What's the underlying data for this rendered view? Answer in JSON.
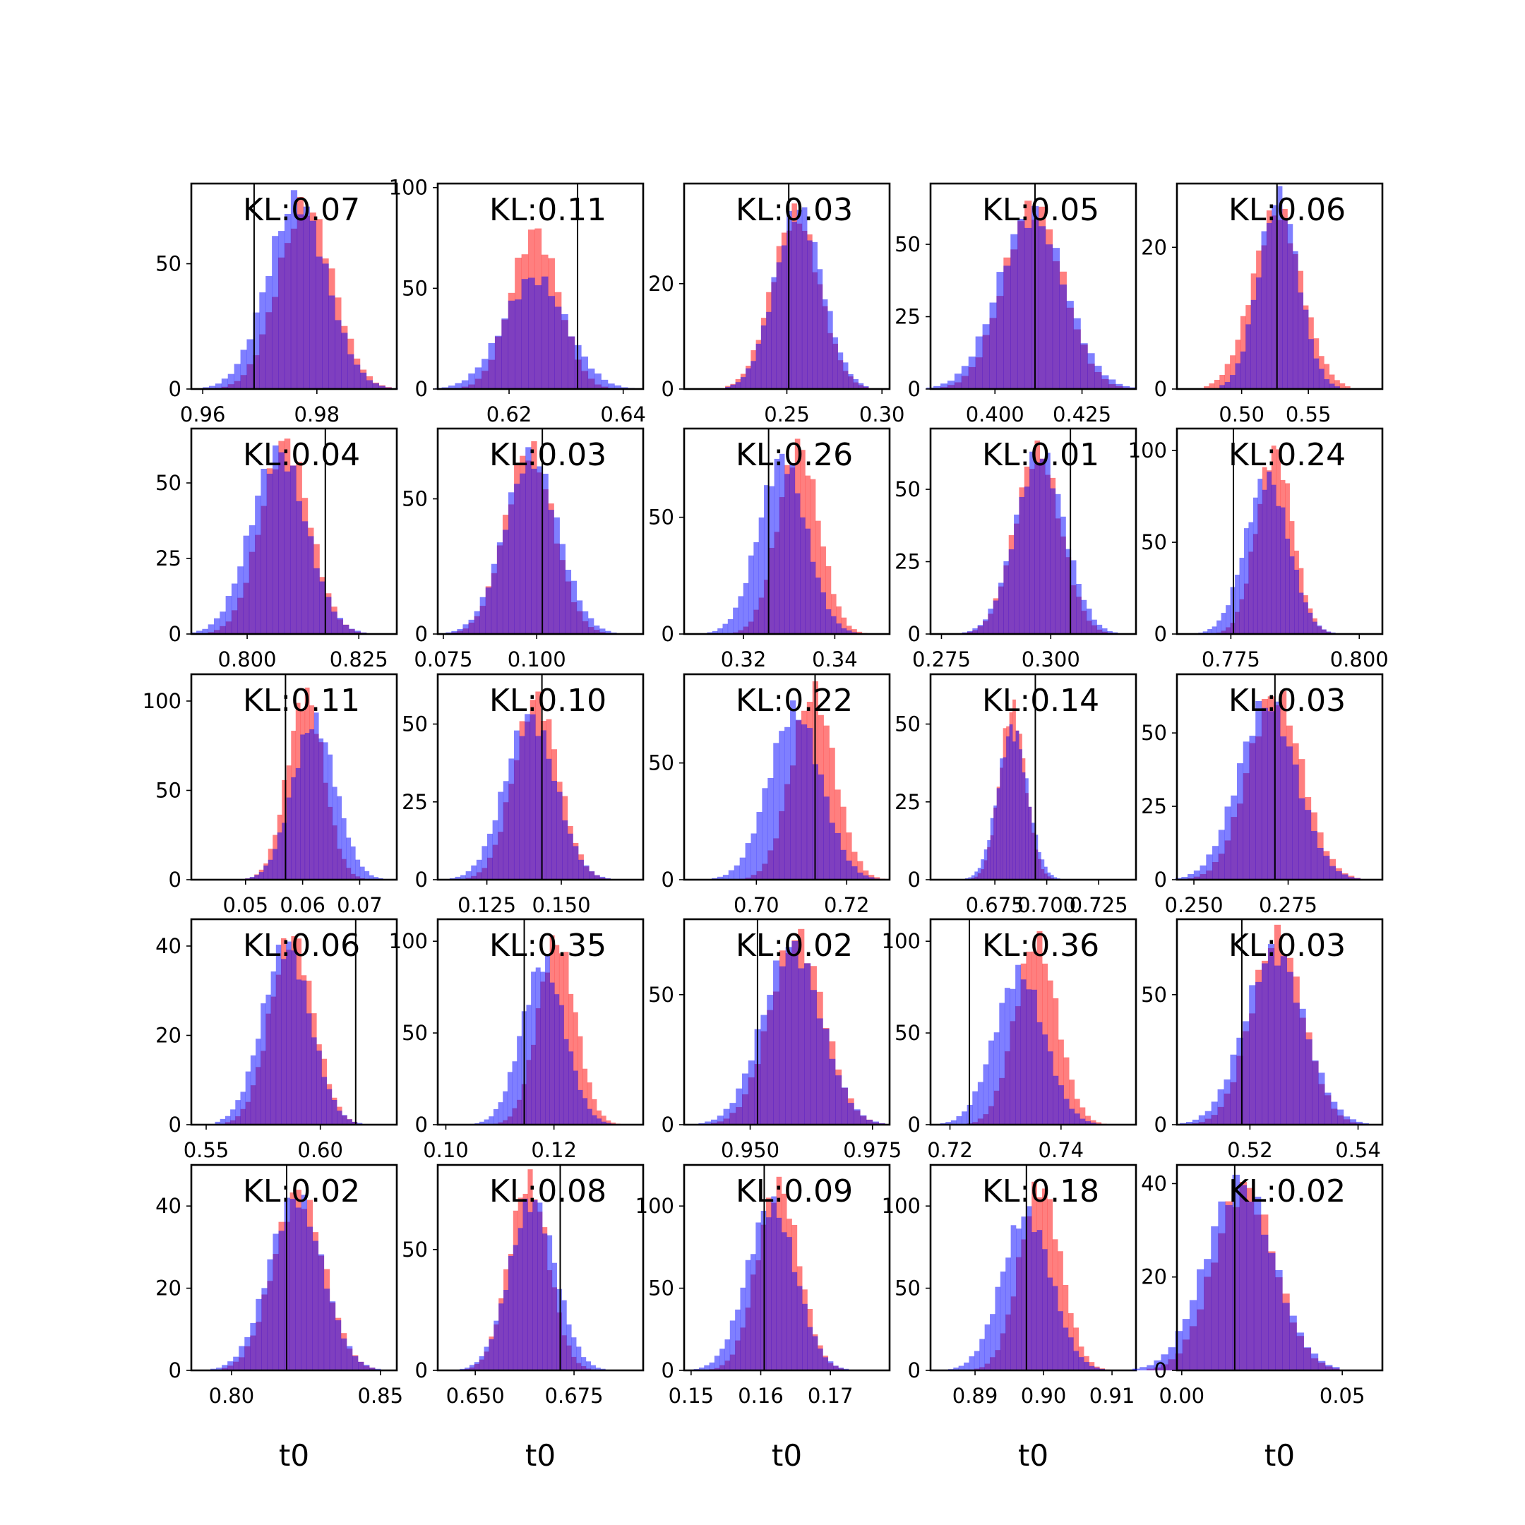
{
  "colors": {
    "series_a": "#ff0000",
    "series_b": "#0000ff",
    "bar_opacity": 0.5,
    "truth_line": "#000000"
  },
  "chart_data": [
    {
      "type": "bar",
      "kl_label": "KL:0.07",
      "xlim": [
        0.958,
        0.994
      ],
      "ylim": [
        0,
        82
      ],
      "xticks": [
        0.96,
        0.98
      ],
      "xtick_labels": [
        "0.96",
        "0.98"
      ],
      "yticks": [
        0,
        50
      ],
      "ytick_labels": [
        "0",
        "50"
      ],
      "truth": 0.969,
      "mean_a": 0.978,
      "sd_a": 0.0048,
      "mean_b": 0.9765,
      "sd_b": 0.0052,
      "peak_a": 73,
      "peak_b": 75,
      "xlabel": ""
    },
    {
      "type": "bar",
      "kl_label": "KL:0.11",
      "xlim": [
        0.6075,
        0.6435
      ],
      "ylim": [
        0,
        102
      ],
      "xticks": [
        0.62,
        0.64
      ],
      "xtick_labels": [
        "0.62",
        "0.64"
      ],
      "yticks": [
        0,
        50,
        100
      ],
      "ytick_labels": [
        "0",
        "50",
        "100"
      ],
      "truth": 0.632,
      "mean_a": 0.6245,
      "sd_a": 0.0042,
      "mean_b": 0.6245,
      "sd_b": 0.0055,
      "peak_a": 78,
      "peak_b": 55,
      "xlabel": ""
    },
    {
      "type": "bar",
      "kl_label": "KL:0.03",
      "xlim": [
        0.196,
        0.304
      ],
      "ylim": [
        0,
        39
      ],
      "xticks": [
        0.25,
        0.3
      ],
      "xtick_labels": [
        "0.25",
        "0.30"
      ],
      "yticks": [
        0,
        20
      ],
      "ytick_labels": [
        "0",
        "20"
      ],
      "truth": 0.251,
      "mean_a": 0.2545,
      "sd_a": 0.0125,
      "mean_b": 0.256,
      "sd_b": 0.0125,
      "peak_a": 33,
      "peak_b": 34,
      "xlabel": ""
    },
    {
      "type": "bar",
      "kl_label": "KL:0.05",
      "xlim": [
        0.3815,
        0.4405
      ],
      "ylim": [
        0,
        71
      ],
      "xticks": [
        0.4,
        0.425
      ],
      "xtick_labels": [
        "0.400",
        "0.425"
      ],
      "yticks": [
        0,
        25,
        50
      ],
      "ytick_labels": [
        "0",
        "25",
        "50"
      ],
      "truth": 0.4115,
      "mean_a": 0.411,
      "sd_a": 0.0085,
      "mean_b": 0.4105,
      "sd_b": 0.0095,
      "peak_a": 63,
      "peak_b": 60,
      "xlabel": ""
    },
    {
      "type": "bar",
      "kl_label": "KL:0.06",
      "xlim": [
        0.4515,
        0.6055
      ],
      "ylim": [
        0,
        29
      ],
      "xticks": [
        0.5,
        0.55
      ],
      "xtick_labels": [
        "0.50",
        "0.55"
      ],
      "yticks": [
        0,
        20
      ],
      "ytick_labels": [
        "0",
        "20"
      ],
      "truth": 0.5265,
      "mean_a": 0.5265,
      "sd_a": 0.0185,
      "mean_b": 0.5275,
      "sd_b": 0.015,
      "peak_a": 25,
      "peak_b": 27,
      "xlabel": ""
    },
    {
      "type": "bar",
      "kl_label": "KL:0.04",
      "xlim": [
        0.7875,
        0.8335
      ],
      "ylim": [
        0,
        68
      ],
      "xticks": [
        0.8,
        0.825
      ],
      "xtick_labels": [
        "0.800",
        "0.825"
      ],
      "yticks": [
        0,
        25,
        50
      ],
      "ytick_labels": [
        "0",
        "25",
        "50"
      ],
      "truth": 0.8175,
      "mean_a": 0.8085,
      "sd_a": 0.0055,
      "mean_b": 0.807,
      "sd_b": 0.0062,
      "peak_a": 63,
      "peak_b": 60,
      "xlabel": ""
    },
    {
      "type": "bar",
      "kl_label": "KL:0.03",
      "xlim": [
        0.0735,
        0.1285
      ],
      "ylim": [
        0,
        76
      ],
      "xticks": [
        0.075,
        0.1
      ],
      "xtick_labels": [
        "0.075",
        "0.100"
      ],
      "yticks": [
        0,
        50
      ],
      "ytick_labels": [
        "0",
        "50"
      ],
      "truth": 0.1015,
      "mean_a": 0.098,
      "sd_a": 0.0065,
      "mean_b": 0.0985,
      "sd_b": 0.0072,
      "peak_a": 68,
      "peak_b": 65,
      "xlabel": ""
    },
    {
      "type": "bar",
      "kl_label": "KL:0.26",
      "xlim": [
        0.307,
        0.352
      ],
      "ylim": [
        0,
        88
      ],
      "xticks": [
        0.32,
        0.34
      ],
      "xtick_labels": [
        "0.32",
        "0.34"
      ],
      "yticks": [
        0,
        50
      ],
      "ytick_labels": [
        "0",
        "50"
      ],
      "truth": 0.3255,
      "mean_a": 0.332,
      "sd_a": 0.0045,
      "mean_b": 0.3285,
      "sd_b": 0.0052,
      "peak_a": 80,
      "peak_b": 75,
      "xlabel": ""
    },
    {
      "type": "bar",
      "kl_label": "KL:0.01",
      "xlim": [
        0.2725,
        0.3195
      ],
      "ylim": [
        0,
        71
      ],
      "xticks": [
        0.275,
        0.3
      ],
      "xtick_labels": [
        "0.275",
        "0.300"
      ],
      "yticks": [
        0,
        25,
        50
      ],
      "ytick_labels": [
        "0",
        "25",
        "50"
      ],
      "truth": 0.3045,
      "mean_a": 0.297,
      "sd_a": 0.0052,
      "mean_b": 0.2975,
      "sd_b": 0.0056,
      "peak_a": 63,
      "peak_b": 62,
      "xlabel": ""
    },
    {
      "type": "bar",
      "kl_label": "KL:0.24",
      "xlim": [
        0.7645,
        0.8045
      ],
      "ylim": [
        0,
        112
      ],
      "xticks": [
        0.775,
        0.8
      ],
      "xtick_labels": [
        "0.775",
        "0.800"
      ],
      "yticks": [
        0,
        50,
        100
      ],
      "ytick_labels": [
        "0",
        "50",
        "100"
      ],
      "truth": 0.7755,
      "mean_a": 0.7835,
      "sd_a": 0.0035,
      "mean_b": 0.782,
      "sd_b": 0.0042,
      "peak_a": 100,
      "peak_b": 85,
      "xlabel": ""
    },
    {
      "type": "bar",
      "kl_label": "KL:0.11",
      "xlim": [
        0.0405,
        0.0765
      ],
      "ylim": [
        0,
        115
      ],
      "xticks": [
        0.05,
        0.06,
        0.07
      ],
      "xtick_labels": [
        "0.05",
        "0.06",
        "0.07"
      ],
      "yticks": [
        0,
        50,
        100
      ],
      "ytick_labels": [
        "0",
        "50",
        "100"
      ],
      "truth": 0.057,
      "mean_a": 0.0605,
      "sd_a": 0.0032,
      "mean_b": 0.062,
      "sd_b": 0.0038,
      "peak_a": 103,
      "peak_b": 88,
      "xlabel": ""
    },
    {
      "type": "bar",
      "kl_label": "KL:0.10",
      "xlim": [
        0.1085,
        0.1775
      ],
      "ylim": [
        0,
        66
      ],
      "xticks": [
        0.125,
        0.15
      ],
      "xtick_labels": [
        "0.125",
        "0.150"
      ],
      "yticks": [
        0,
        25,
        50
      ],
      "ytick_labels": [
        "0",
        "25",
        "50"
      ],
      "truth": 0.1435,
      "mean_a": 0.1415,
      "sd_a": 0.0075,
      "mean_b": 0.1395,
      "sd_b": 0.0085,
      "peak_a": 58,
      "peak_b": 52,
      "xlabel": ""
    },
    {
      "type": "bar",
      "kl_label": "KL:0.22",
      "xlim": [
        0.684,
        0.7295
      ],
      "ylim": [
        0,
        88
      ],
      "xticks": [
        0.7,
        0.72
      ],
      "xtick_labels": [
        "0.70",
        "0.72"
      ],
      "yticks": [
        0,
        50
      ],
      "ytick_labels": [
        "0",
        "50"
      ],
      "truth": 0.713,
      "mean_a": 0.7125,
      "sd_a": 0.0048,
      "mean_b": 0.7085,
      "sd_b": 0.0058,
      "peak_a": 80,
      "peak_b": 72,
      "xlabel": ""
    },
    {
      "type": "bar",
      "kl_label": "KL:0.14",
      "xlim": [
        0.644,
        0.743
      ],
      "ylim": [
        0,
        66
      ],
      "xticks": [
        0.675,
        0.7,
        0.725
      ],
      "xtick_labels": [
        "0.675",
        "0.700",
        "0.725"
      ],
      "yticks": [
        0,
        25,
        50
      ],
      "ytick_labels": [
        "0",
        "25",
        "50"
      ],
      "truth": 0.6945,
      "mean_a": 0.6835,
      "sd_a": 0.0062,
      "mean_b": 0.6835,
      "sd_b": 0.0072,
      "peak_a": 55,
      "peak_b": 48,
      "xlabel": ""
    },
    {
      "type": "bar",
      "kl_label": "KL:0.03",
      "xlim": [
        0.2455,
        0.3
      ],
      "ylim": [
        0,
        70
      ],
      "xticks": [
        0.25,
        0.275
      ],
      "xtick_labels": [
        "0.250",
        "0.275"
      ],
      "yticks": [
        0,
        25,
        50
      ],
      "ytick_labels": [
        "0",
        "25",
        "50"
      ],
      "truth": 0.2715,
      "mean_a": 0.2715,
      "sd_a": 0.0072,
      "mean_b": 0.2695,
      "sd_b": 0.0077,
      "peak_a": 63,
      "peak_b": 60,
      "xlabel": ""
    },
    {
      "type": "bar",
      "kl_label": "KL:0.06",
      "xlim": [
        0.5435,
        0.6335
      ],
      "ylim": [
        0,
        46
      ],
      "xticks": [
        0.55,
        0.6
      ],
      "xtick_labels": [
        "0.55",
        "0.60"
      ],
      "yticks": [
        0,
        20,
        40
      ],
      "ytick_labels": [
        "0",
        "20",
        "40"
      ],
      "truth": 0.6155,
      "mean_a": 0.5875,
      "sd_a": 0.0095,
      "mean_b": 0.585,
      "sd_b": 0.0105,
      "peak_a": 42,
      "peak_b": 40,
      "xlabel": ""
    },
    {
      "type": "bar",
      "kl_label": "KL:0.35",
      "xlim": [
        0.0985,
        0.1365
      ],
      "ylim": [
        0,
        112
      ],
      "xticks": [
        0.1,
        0.12
      ],
      "xtick_labels": [
        "0.10",
        "0.12"
      ],
      "yticks": [
        0,
        50,
        100
      ],
      "ytick_labels": [
        "0",
        "50",
        "100"
      ],
      "truth": 0.1145,
      "mean_a": 0.1205,
      "sd_a": 0.0035,
      "mean_b": 0.118,
      "sd_b": 0.004,
      "peak_a": 100,
      "peak_b": 88,
      "xlabel": ""
    },
    {
      "type": "bar",
      "kl_label": "KL:0.02",
      "xlim": [
        0.9365,
        0.9785
      ],
      "ylim": [
        0,
        79
      ],
      "xticks": [
        0.95,
        0.975
      ],
      "xtick_labels": [
        "0.950",
        "0.975"
      ],
      "yticks": [
        0,
        50
      ],
      "ytick_labels": [
        "0",
        "50"
      ],
      "truth": 0.9515,
      "mean_a": 0.9595,
      "sd_a": 0.0055,
      "mean_b": 0.9585,
      "sd_b": 0.006,
      "peak_a": 72,
      "peak_b": 68,
      "xlabel": ""
    },
    {
      "type": "bar",
      "kl_label": "KL:0.36",
      "xlim": [
        0.7165,
        0.7535
      ],
      "ylim": [
        0,
        112
      ],
      "xticks": [
        0.72,
        0.74
      ],
      "xtick_labels": [
        "0.72",
        "0.74"
      ],
      "yticks": [
        0,
        50,
        100
      ],
      "ytick_labels": [
        "0",
        "50",
        "100"
      ],
      "truth": 0.7235,
      "mean_a": 0.7355,
      "sd_a": 0.0038,
      "mean_b": 0.7325,
      "sd_b": 0.0045,
      "peak_a": 100,
      "peak_b": 82,
      "xlabel": ""
    },
    {
      "type": "bar",
      "kl_label": "KL:0.03",
      "xlim": [
        0.5065,
        0.5445
      ],
      "ylim": [
        0,
        79
      ],
      "xticks": [
        0.52,
        0.54
      ],
      "xtick_labels": [
        "0.52",
        "0.54"
      ],
      "yticks": [
        0,
        50
      ],
      "ytick_labels": [
        "0",
        "50"
      ],
      "truth": 0.5185,
      "mean_a": 0.525,
      "sd_a": 0.0048,
      "mean_b": 0.5245,
      "sd_b": 0.0055,
      "peak_a": 72,
      "peak_b": 66,
      "xlabel": ""
    },
    {
      "type": "bar",
      "kl_label": "KL:0.02",
      "xlim": [
        0.7865,
        0.8555
      ],
      "ylim": [
        0,
        50
      ],
      "xticks": [
        0.8,
        0.85
      ],
      "xtick_labels": [
        "0.80",
        "0.85"
      ],
      "yticks": [
        0,
        20,
        40
      ],
      "ytick_labels": [
        "0",
        "20",
        "40"
      ],
      "truth": 0.8185,
      "mean_a": 0.8225,
      "sd_a": 0.0085,
      "mean_b": 0.8215,
      "sd_b": 0.009,
      "peak_a": 43,
      "peak_b": 42,
      "xlabel": "t0"
    },
    {
      "type": "bar",
      "kl_label": "KL:0.08",
      "xlim": [
        0.6405,
        0.6925
      ],
      "ylim": [
        0,
        85
      ],
      "xticks": [
        0.65,
        0.675
      ],
      "xtick_labels": [
        "0.650",
        "0.675"
      ],
      "yticks": [
        0,
        50
      ],
      "ytick_labels": [
        "0",
        "50"
      ],
      "truth": 0.6715,
      "mean_a": 0.6635,
      "sd_a": 0.005,
      "mean_b": 0.6645,
      "sd_b": 0.0058,
      "peak_a": 78,
      "peak_b": 70,
      "xlabel": "t0"
    },
    {
      "type": "bar",
      "kl_label": "KL:0.09",
      "xlim": [
        0.149,
        0.1785
      ],
      "ylim": [
        0,
        125
      ],
      "xticks": [
        0.15,
        0.16,
        0.17
      ],
      "xtick_labels": [
        "0.15",
        "0.16",
        "0.17"
      ],
      "yticks": [
        0,
        50,
        100
      ],
      "ytick_labels": [
        "0",
        "50",
        "100"
      ],
      "truth": 0.1605,
      "mean_a": 0.1625,
      "sd_a": 0.003,
      "mean_b": 0.1615,
      "sd_b": 0.0035,
      "peak_a": 112,
      "peak_b": 100,
      "xlabel": "t0"
    },
    {
      "type": "bar",
      "kl_label": "KL:0.18",
      "xlim": [
        0.8835,
        0.9135
      ],
      "ylim": [
        0,
        125
      ],
      "xticks": [
        0.89,
        0.9,
        0.91
      ],
      "xtick_labels": [
        "0.89",
        "0.90",
        "0.91"
      ],
      "yticks": [
        0,
        50,
        100
      ],
      "ytick_labels": [
        "0",
        "50",
        "100"
      ],
      "truth": 0.8975,
      "mean_a": 0.8995,
      "sd_a": 0.003,
      "mean_b": 0.8975,
      "sd_b": 0.0036,
      "peak_a": 112,
      "peak_b": 95,
      "xlabel": "t0"
    },
    {
      "type": "bar",
      "kl_label": "KL:0.02",
      "xlim": [
        -0.0015,
        0.0625
      ],
      "ylim": [
        0,
        44
      ],
      "xticks": [
        0.0,
        0.05
      ],
      "xtick_labels": [
        "0.00",
        "0.05"
      ],
      "yticks": [
        0,
        20,
        40
      ],
      "ytick_labels": [
        "0",
        "20",
        "40"
      ],
      "truth": 0.0165,
      "mean_a": 0.0195,
      "sd_a": 0.0095,
      "mean_b": 0.018,
      "sd_b": 0.0105,
      "peak_a": 39,
      "peak_b": 40,
      "xlabel": "t0"
    }
  ]
}
